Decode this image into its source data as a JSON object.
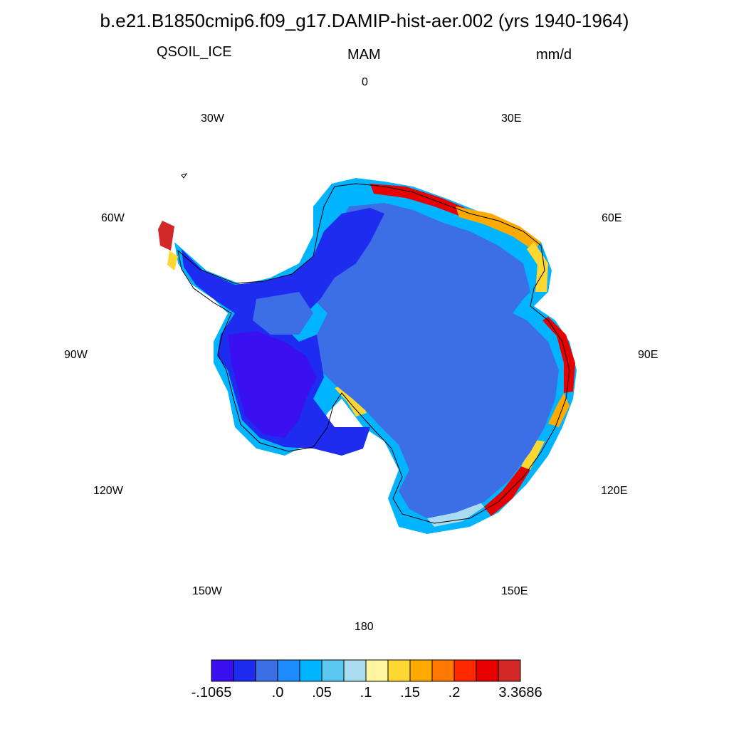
{
  "title": "b.e21.B1850cmip6.f09_g17.DAMIP-hist-aer.002 (yrs 1940-1964)",
  "variable": "QSOIL_ICE",
  "season": "MAM",
  "units": "mm/d",
  "longitude_labels": {
    "lon_0": "0",
    "lon_30e": "30E",
    "lon_60e": "60E",
    "lon_90e": "90E",
    "lon_120e": "120E",
    "lon_150e": "150E",
    "lon_180": "180",
    "lon_150w": "150W",
    "lon_120w": "120W",
    "lon_90w": "90W",
    "lon_60w": "60W",
    "lon_30w": "30W"
  },
  "colorbar": {
    "colors": [
      "#3a10f0",
      "#1e2cf0",
      "#3c6ee6",
      "#1e8cff",
      "#00b4ff",
      "#5ac8f0",
      "#aadcf0",
      "#fff5a0",
      "#ffd732",
      "#ffaa00",
      "#ff7800",
      "#ff2800",
      "#e60000",
      "#d22828"
    ],
    "labels": [
      "-.1065",
      ".0",
      ".05",
      ".1",
      ".15",
      ".2",
      "3.3686"
    ],
    "label_positions": [
      0,
      3,
      5,
      7,
      9,
      11,
      14
    ]
  },
  "region_colors": {
    "interior": "#3c6ee6",
    "west_low": "#1e2cf0",
    "west_min": "#3a10f0",
    "coast_light": "#5ac8f0",
    "coast_pale": "#aadcf0",
    "coast_cyan": "#00b4ff",
    "coast_yellow": "#ffd732",
    "coast_orange": "#ffaa00",
    "coast_red": "#e60000",
    "coast_darkred": "#d22828"
  }
}
